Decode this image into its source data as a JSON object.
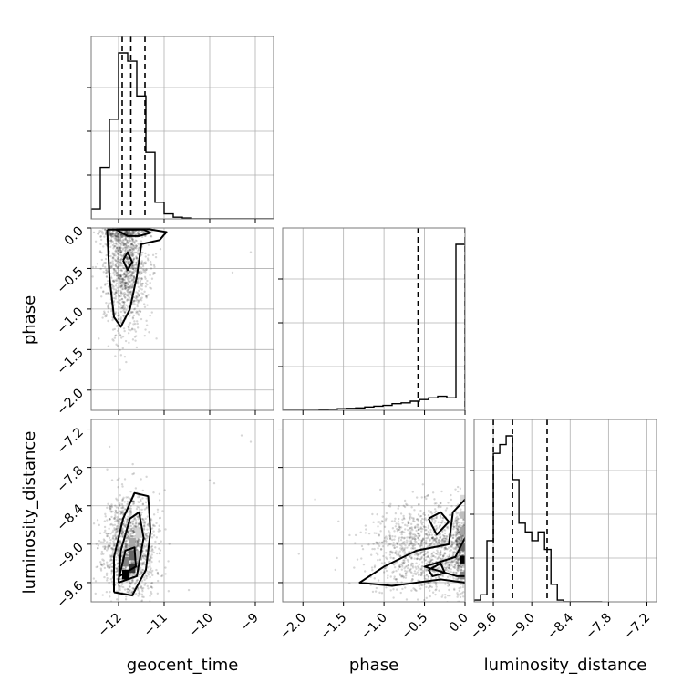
{
  "chart_data": {
    "type": "corner",
    "parameters": [
      "geocent_time",
      "phase",
      "luminosity_distance"
    ],
    "axis_labels": {
      "geocent_time": "geocent_time",
      "phase": "phase",
      "luminosity_distance": "luminosity_distance"
    },
    "ranges": {
      "geocent_time": [
        -12.6,
        -8.6
      ],
      "phase": [
        -2.25,
        0.0
      ],
      "luminosity_distance": [
        -9.9,
        -7.05
      ]
    },
    "ticks": {
      "geocent_time": [
        -12,
        -11,
        -10,
        -9
      ],
      "phase": [
        -2.0,
        -1.5,
        -1.0,
        -0.5,
        0.0
      ],
      "luminosity_distance": [
        -9.6,
        -9.0,
        -8.4,
        -7.8,
        -7.2
      ]
    },
    "tick_labels": {
      "geocent_time": [
        "−12",
        "−11",
        "−10",
        "−9"
      ],
      "phase": [
        "−2.0",
        "−1.5",
        "−1.0",
        "−0.5",
        "0.0"
      ],
      "luminosity_distance": [
        "−9.6",
        "−9.0",
        "−8.4",
        "−7.8",
        "−7.2"
      ]
    },
    "grid": true,
    "histograms": {
      "geocent_time": {
        "edges": [
          -12.6,
          -12.4,
          -12.2,
          -12.0,
          -11.8,
          -11.6,
          -11.4,
          -11.2,
          -11.0,
          -10.8,
          -10.6,
          -10.4,
          -10.2,
          -10.0,
          -9.8,
          -9.6,
          -9.4,
          -9.2,
          -9.0,
          -8.8,
          -8.6
        ],
        "counts": [
          0.06,
          0.31,
          0.6,
          1.0,
          0.95,
          0.74,
          0.4,
          0.1,
          0.03,
          0.01,
          0.005,
          0,
          0,
          0,
          0,
          0,
          0,
          0,
          0,
          0
        ],
        "quantiles": [
          -11.92,
          -11.73,
          -11.42
        ]
      },
      "phase": {
        "edges": [
          -2.25,
          -2.1375,
          -2.025,
          -1.9125,
          -1.8,
          -1.6875,
          -1.575,
          -1.4625,
          -1.35,
          -1.2375,
          -1.125,
          -1.0125,
          -0.9,
          -0.7875,
          -0.675,
          -0.5625,
          -0.45,
          -0.3375,
          -0.225,
          -0.1125,
          0.0
        ],
        "counts": [
          0.0,
          0.0,
          0.0,
          0.0,
          0.005,
          0.007,
          0.01,
          0.012,
          0.015,
          0.02,
          0.025,
          0.03,
          0.04,
          0.045,
          0.055,
          0.065,
          0.075,
          0.085,
          0.075,
          1.0
        ],
        "quantiles": [
          -0.58,
          0.0
        ]
      },
      "luminosity_distance": {
        "edges": [
          -9.9,
          -9.8,
          -9.7,
          -9.6,
          -9.5,
          -9.4,
          -9.3,
          -9.2,
          -9.1,
          -9.0,
          -8.9,
          -8.8,
          -8.7,
          -8.6,
          -8.5,
          -8.4,
          -8.3,
          -8.2,
          -8.1,
          -8.0,
          -7.9
        ],
        "counts": [
          0.01,
          0.04,
          0.35,
          0.85,
          0.9,
          0.95,
          0.7,
          0.45,
          0.4,
          0.35,
          0.4,
          0.3,
          0.1,
          0.01,
          0.0,
          0.0,
          0.0,
          0.0,
          0.0,
          0.0
        ],
        "quantiles": [
          -9.6,
          -9.3,
          -8.76
        ]
      }
    },
    "joint": {
      "geocent_time__phase": {
        "x": "geocent_time",
        "y": "phase",
        "density_cells": [
          {
            "x": -11.92,
            "y": -0.03,
            "w": 0.35,
            "h": 0.09,
            "v": 1.0
          },
          {
            "x": -11.55,
            "y": -0.03,
            "w": 0.2,
            "h": 0.09,
            "v": 0.45
          },
          {
            "x": -12.1,
            "y": -0.03,
            "w": 0.18,
            "h": 0.09,
            "v": 0.25
          }
        ],
        "contours": [
          [
            [
              -12.25,
              -0.02
            ],
            [
              -12.2,
              -0.6
            ],
            [
              -12.1,
              -1.1
            ],
            [
              -11.95,
              -1.22
            ],
            [
              -11.75,
              -1.0
            ],
            [
              -11.6,
              -0.6
            ],
            [
              -11.5,
              -0.2
            ],
            [
              -11.1,
              -0.15
            ],
            [
              -10.95,
              -0.05
            ],
            [
              -11.5,
              0.0
            ],
            [
              -12.0,
              -0.02
            ],
            [
              -12.25,
              -0.02
            ]
          ],
          [
            [
              -12.05,
              -0.02
            ],
            [
              -11.8,
              -0.1
            ],
            [
              -11.55,
              -0.1
            ],
            [
              -11.3,
              -0.06
            ],
            [
              -11.45,
              -0.02
            ],
            [
              -12.05,
              -0.02
            ]
          ],
          [
            [
              -11.9,
              -0.4
            ],
            [
              -11.8,
              -0.3
            ],
            [
              -11.7,
              -0.42
            ],
            [
              -11.8,
              -0.52
            ],
            [
              -11.9,
              -0.4
            ]
          ]
        ],
        "point_cloud": {
          "center": [
            -11.85,
            -0.4
          ],
          "spread": [
            0.25,
            0.45
          ],
          "count": 1300,
          "seed": 7,
          "extra": [
            {
              "x": -9.5,
              "y": -0.55
            },
            {
              "x": -9.1,
              "y": -0.3
            }
          ]
        }
      },
      "geocent_time__luminosity_distance": {
        "x": "geocent_time",
        "y": "luminosity_distance",
        "density_cells": [
          {
            "x": -11.92,
            "y": -9.55,
            "w": 0.15,
            "h": 0.15,
            "v": 1.0
          },
          {
            "x": -11.78,
            "y": -9.45,
            "w": 0.15,
            "h": 0.15,
            "v": 0.8
          },
          {
            "x": -11.78,
            "y": -9.25,
            "w": 0.15,
            "h": 0.15,
            "v": 0.6
          },
          {
            "x": -11.92,
            "y": -9.35,
            "w": 0.15,
            "h": 0.15,
            "v": 0.5
          },
          {
            "x": -11.63,
            "y": -9.25,
            "w": 0.15,
            "h": 0.15,
            "v": 0.3
          },
          {
            "x": -11.78,
            "y": -9.05,
            "w": 0.15,
            "h": 0.15,
            "v": 0.35
          },
          {
            "x": -11.63,
            "y": -8.9,
            "w": 0.15,
            "h": 0.15,
            "v": 0.18
          }
        ],
        "contours": [
          [
            [
              -12.1,
              -9.75
            ],
            [
              -12.1,
              -9.2
            ],
            [
              -11.9,
              -8.6
            ],
            [
              -11.65,
              -8.2
            ],
            [
              -11.35,
              -8.25
            ],
            [
              -11.3,
              -8.8
            ],
            [
              -11.4,
              -9.4
            ],
            [
              -11.7,
              -9.8
            ],
            [
              -12.1,
              -9.75
            ]
          ],
          [
            [
              -12.0,
              -9.6
            ],
            [
              -11.95,
              -9.1
            ],
            [
              -11.75,
              -8.6
            ],
            [
              -11.55,
              -8.5
            ],
            [
              -11.45,
              -8.9
            ],
            [
              -11.6,
              -9.5
            ],
            [
              -12.0,
              -9.6
            ]
          ],
          [
            [
              -11.98,
              -9.5
            ],
            [
              -11.85,
              -9.1
            ],
            [
              -11.65,
              -9.05
            ],
            [
              -11.62,
              -9.35
            ],
            [
              -11.98,
              -9.5
            ]
          ]
        ],
        "point_cloud": {
          "center": [
            -11.75,
            -9.05
          ],
          "spread": [
            0.28,
            0.42
          ],
          "count": 1300,
          "seed": 11,
          "extra": [
            {
              "x": -10.0,
              "y": -8.0
            },
            {
              "x": -9.9,
              "y": -8.05
            },
            {
              "x": -9.3,
              "y": -7.3
            },
            {
              "x": -9.1,
              "y": -7.4
            }
          ]
        }
      },
      "phase__luminosity_distance": {
        "x": "phase",
        "y": "luminosity_distance",
        "density_cells": [
          {
            "x": -0.06,
            "y": -9.55,
            "w": 0.1,
            "h": 0.12,
            "v": 0.5
          },
          {
            "x": -0.06,
            "y": -9.3,
            "w": 0.1,
            "h": 0.12,
            "v": 1.0
          },
          {
            "x": -0.06,
            "y": -9.1,
            "w": 0.1,
            "h": 0.12,
            "v": 0.6
          },
          {
            "x": -0.06,
            "y": -8.85,
            "w": 0.1,
            "h": 0.12,
            "v": 0.35
          },
          {
            "x": -0.06,
            "y": -8.6,
            "w": 0.1,
            "h": 0.12,
            "v": 0.25
          },
          {
            "x": -0.06,
            "y": -8.35,
            "w": 0.1,
            "h": 0.12,
            "v": 0.15
          }
        ],
        "contours": [
          [
            [
              0.0,
              -8.3
            ],
            [
              -0.15,
              -8.5
            ],
            [
              -0.2,
              -9.0
            ],
            [
              -0.6,
              -9.1
            ],
            [
              -1.0,
              -9.35
            ],
            [
              -1.3,
              -9.6
            ],
            [
              -0.9,
              -9.65
            ],
            [
              -0.3,
              -9.55
            ],
            [
              0.0,
              -9.6
            ]
          ],
          [
            [
              0.0,
              -8.9
            ],
            [
              -0.12,
              -9.2
            ],
            [
              -0.5,
              -9.35
            ],
            [
              -0.1,
              -9.5
            ],
            [
              0.0,
              -9.5
            ]
          ],
          [
            [
              -0.45,
              -8.6
            ],
            [
              -0.3,
              -8.5
            ],
            [
              -0.2,
              -8.65
            ],
            [
              -0.35,
              -8.85
            ],
            [
              -0.45,
              -8.6
            ]
          ],
          [
            [
              -0.45,
              -9.4
            ],
            [
              -0.3,
              -9.3
            ],
            [
              -0.25,
              -9.45
            ],
            [
              -0.4,
              -9.5
            ],
            [
              -0.45,
              -9.4
            ]
          ]
        ],
        "point_cloud": {
          "center": [
            -0.35,
            -9.1
          ],
          "spread": [
            0.4,
            0.35
          ],
          "count": 1400,
          "seed": 19,
          "extra": [
            {
              "x": -1.85,
              "y": -8.3
            },
            {
              "x": -2.05,
              "y": -9.15
            },
            {
              "x": -1.6,
              "y": -9.4
            }
          ]
        }
      }
    }
  }
}
